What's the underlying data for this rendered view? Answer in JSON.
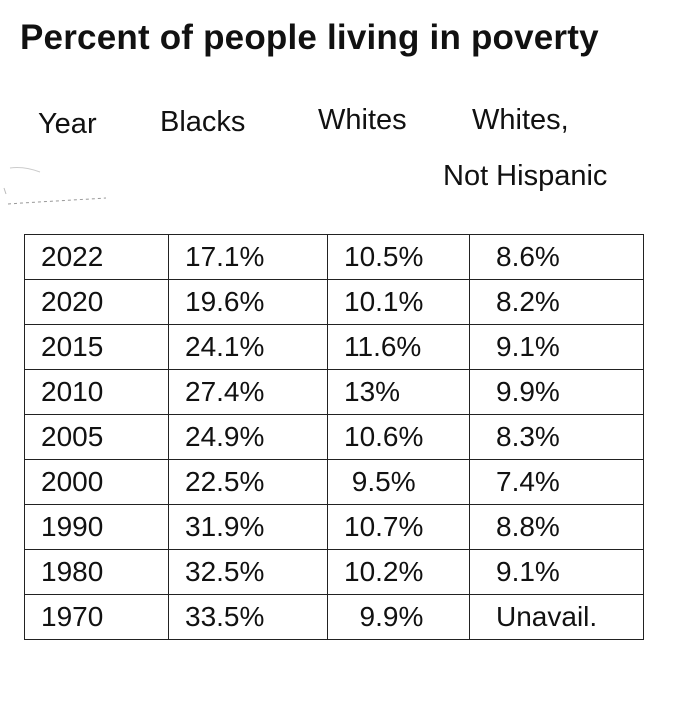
{
  "title": "Percent of people living in poverty",
  "headers": {
    "year": "Year",
    "blacks": "Blacks",
    "whites": "Whites",
    "whites_not_hispanic_line1": "Whites,",
    "whites_not_hispanic_line2": "Not Hispanic"
  },
  "rows": [
    {
      "year": "2022",
      "blacks": "17.1%",
      "whites": "10.5%",
      "whites_not_hispanic": "8.6%"
    },
    {
      "year": "2020",
      "blacks": "19.6%",
      "whites": "10.1%",
      "whites_not_hispanic": "8.2%"
    },
    {
      "year": "2015",
      "blacks": "24.1%",
      "whites": "11.6%",
      "whites_not_hispanic": "9.1%"
    },
    {
      "year": "2010",
      "blacks": "27.4%",
      "whites": "13%",
      "whites_not_hispanic": "9.9%"
    },
    {
      "year": "2005",
      "blacks": "24.9%",
      "whites": "10.6%",
      "whites_not_hispanic": "8.3%"
    },
    {
      "year": "2000",
      "blacks": "22.5%",
      "whites": " 9.5%",
      "whites_not_hispanic": "7.4%"
    },
    {
      "year": "1990",
      "blacks": "31.9%",
      "whites": "10.7%",
      "whites_not_hispanic": "8.8%"
    },
    {
      "year": "1980",
      "blacks": "32.5%",
      "whites": "10.2%",
      "whites_not_hispanic": "9.1%"
    },
    {
      "year": "1970",
      "blacks": "33.5%",
      "whites": "  9.9%",
      "whites_not_hispanic": "Unavail."
    }
  ]
}
